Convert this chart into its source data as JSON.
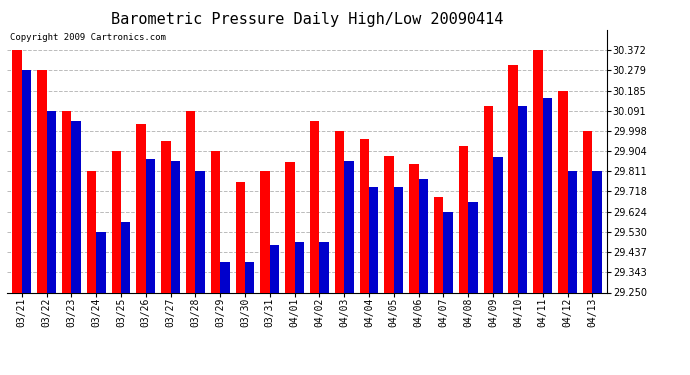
{
  "title": "Barometric Pressure Daily High/Low 20090414",
  "copyright": "Copyright 2009 Cartronics.com",
  "categories": [
    "03/21",
    "03/22",
    "03/23",
    "03/24",
    "03/25",
    "03/26",
    "03/27",
    "03/28",
    "03/29",
    "03/30",
    "03/31",
    "04/01",
    "04/02",
    "04/03",
    "04/04",
    "04/05",
    "04/06",
    "04/07",
    "04/08",
    "04/09",
    "04/10",
    "04/11",
    "04/12",
    "04/13"
  ],
  "highs": [
    30.372,
    30.279,
    30.091,
    29.811,
    29.904,
    30.032,
    29.951,
    30.091,
    29.904,
    29.763,
    29.811,
    29.856,
    30.044,
    29.998,
    29.963,
    29.881,
    29.845,
    29.694,
    29.928,
    30.115,
    30.302,
    30.372,
    30.185,
    29.998
  ],
  "lows": [
    30.279,
    30.091,
    30.044,
    29.53,
    29.577,
    29.869,
    29.857,
    29.811,
    29.39,
    29.39,
    29.47,
    29.483,
    29.483,
    29.857,
    29.74,
    29.74,
    29.775,
    29.624,
    29.67,
    29.88,
    30.115,
    30.15,
    29.811,
    29.811
  ],
  "ymin": 29.25,
  "ymax": 30.466,
  "yticks": [
    29.25,
    29.343,
    29.437,
    29.53,
    29.624,
    29.718,
    29.811,
    29.904,
    29.998,
    30.091,
    30.185,
    30.279,
    30.372
  ],
  "high_color": "#ff0000",
  "low_color": "#0000cc",
  "bg_color": "#ffffff",
  "grid_color": "#bbbbbb",
  "bar_width": 0.38,
  "title_fontsize": 11,
  "tick_fontsize": 7,
  "copyright_fontsize": 6.5
}
